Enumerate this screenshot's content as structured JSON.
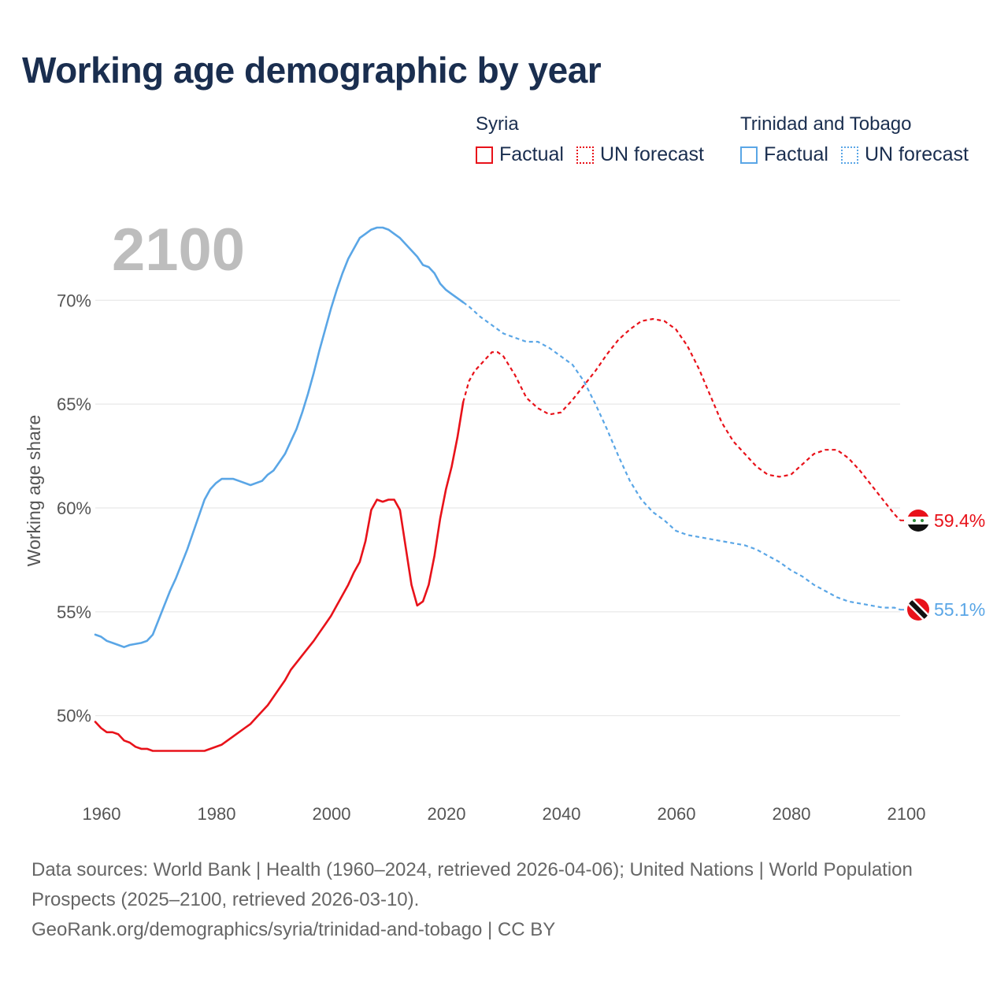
{
  "title": "Working age demographic by year",
  "legend": {
    "syria": {
      "country": "Syria",
      "factual": "Factual",
      "forecast": "UN forecast",
      "color": "#e8121a"
    },
    "tt": {
      "country": "Trinidad and Tobago",
      "factual": "Factual",
      "forecast": "UN forecast",
      "color": "#5aa6e6"
    }
  },
  "current_year": "2100",
  "chart_data": {
    "type": "line",
    "title": "Working age demographic by year",
    "xlabel": "",
    "ylabel": "Working age share",
    "xlim": [
      1960,
      2100
    ],
    "ylim": [
      46.5,
      73.5
    ],
    "x_ticks": [
      "1960",
      "1980",
      "2000",
      "2020",
      "2040",
      "2060",
      "2080",
      "2100"
    ],
    "y_ticks": [
      {
        "value": 50,
        "label": "50%"
      },
      {
        "value": 55,
        "label": "55%"
      },
      {
        "value": 60,
        "label": "60%"
      },
      {
        "value": 65,
        "label": "65%"
      },
      {
        "value": 70,
        "label": "70%"
      }
    ],
    "forecast_start": 2024,
    "series": [
      {
        "name": "Syria",
        "color": "#e8121a",
        "end_label": "59.4%",
        "points": [
          [
            1960,
            49.7
          ],
          [
            1961,
            49.4
          ],
          [
            1962,
            49.2
          ],
          [
            1963,
            49.2
          ],
          [
            1964,
            49.1
          ],
          [
            1965,
            48.8
          ],
          [
            1966,
            48.7
          ],
          [
            1967,
            48.5
          ],
          [
            1968,
            48.4
          ],
          [
            1969,
            48.4
          ],
          [
            1970,
            48.3
          ],
          [
            1972,
            48.3
          ],
          [
            1975,
            48.3
          ],
          [
            1979,
            48.3
          ],
          [
            1980,
            48.4
          ],
          [
            1982,
            48.6
          ],
          [
            1984,
            49.0
          ],
          [
            1986,
            49.4
          ],
          [
            1987,
            49.6
          ],
          [
            1988,
            49.9
          ],
          [
            1990,
            50.5
          ],
          [
            1992,
            51.3
          ],
          [
            1993,
            51.7
          ],
          [
            1994,
            52.2
          ],
          [
            1996,
            52.9
          ],
          [
            1998,
            53.6
          ],
          [
            1999,
            54.0
          ],
          [
            2000,
            54.4
          ],
          [
            2001,
            54.8
          ],
          [
            2002,
            55.3
          ],
          [
            2003,
            55.8
          ],
          [
            2004,
            56.3
          ],
          [
            2005,
            56.9
          ],
          [
            2006,
            57.4
          ],
          [
            2007,
            58.4
          ],
          [
            2008,
            59.9
          ],
          [
            2009,
            60.4
          ],
          [
            2010,
            60.3
          ],
          [
            2011,
            60.4
          ],
          [
            2012,
            60.4
          ],
          [
            2013,
            59.9
          ],
          [
            2014,
            58.1
          ],
          [
            2015,
            56.3
          ],
          [
            2016,
            55.3
          ],
          [
            2017,
            55.5
          ],
          [
            2018,
            56.3
          ],
          [
            2019,
            57.7
          ],
          [
            2020,
            59.5
          ],
          [
            2021,
            60.9
          ],
          [
            2022,
            62.0
          ],
          [
            2023,
            63.4
          ],
          [
            2024,
            65.1
          ],
          [
            2025,
            66.1
          ],
          [
            2026,
            66.6
          ],
          [
            2028,
            67.2
          ],
          [
            2029,
            67.5
          ],
          [
            2030,
            67.5
          ],
          [
            2031,
            67.3
          ],
          [
            2033,
            66.4
          ],
          [
            2035,
            65.3
          ],
          [
            2037,
            64.8
          ],
          [
            2039,
            64.5
          ],
          [
            2041,
            64.6
          ],
          [
            2043,
            65.2
          ],
          [
            2045,
            65.9
          ],
          [
            2047,
            66.6
          ],
          [
            2049,
            67.4
          ],
          [
            2051,
            68.1
          ],
          [
            2053,
            68.6
          ],
          [
            2055,
            69.0
          ],
          [
            2057,
            69.1
          ],
          [
            2059,
            69.0
          ],
          [
            2061,
            68.6
          ],
          [
            2063,
            67.8
          ],
          [
            2065,
            66.7
          ],
          [
            2067,
            65.4
          ],
          [
            2069,
            64.1
          ],
          [
            2071,
            63.2
          ],
          [
            2073,
            62.6
          ],
          [
            2075,
            62.0
          ],
          [
            2077,
            61.6
          ],
          [
            2079,
            61.5
          ],
          [
            2081,
            61.6
          ],
          [
            2083,
            62.1
          ],
          [
            2085,
            62.6
          ],
          [
            2087,
            62.8
          ],
          [
            2089,
            62.8
          ],
          [
            2091,
            62.4
          ],
          [
            2093,
            61.8
          ],
          [
            2095,
            61.1
          ],
          [
            2097,
            60.4
          ],
          [
            2099,
            59.7
          ],
          [
            2100,
            59.4
          ]
        ]
      },
      {
        "name": "Trinidad and Tobago",
        "color": "#5aa6e6",
        "end_label": "55.1%",
        "points": [
          [
            1960,
            53.9
          ],
          [
            1961,
            53.8
          ],
          [
            1962,
            53.6
          ],
          [
            1963,
            53.5
          ],
          [
            1964,
            53.4
          ],
          [
            1965,
            53.3
          ],
          [
            1966,
            53.4
          ],
          [
            1968,
            53.5
          ],
          [
            1969,
            53.6
          ],
          [
            1970,
            53.9
          ],
          [
            1971,
            54.6
          ],
          [
            1972,
            55.3
          ],
          [
            1973,
            56.0
          ],
          [
            1974,
            56.6
          ],
          [
            1975,
            57.3
          ],
          [
            1976,
            58.0
          ],
          [
            1977,
            58.8
          ],
          [
            1978,
            59.6
          ],
          [
            1979,
            60.4
          ],
          [
            1980,
            60.9
          ],
          [
            1981,
            61.2
          ],
          [
            1982,
            61.4
          ],
          [
            1983,
            61.4
          ],
          [
            1984,
            61.4
          ],
          [
            1985,
            61.3
          ],
          [
            1987,
            61.1
          ],
          [
            1989,
            61.3
          ],
          [
            1990,
            61.6
          ],
          [
            1991,
            61.8
          ],
          [
            1992,
            62.2
          ],
          [
            1993,
            62.6
          ],
          [
            1994,
            63.2
          ],
          [
            1995,
            63.8
          ],
          [
            1996,
            64.6
          ],
          [
            1997,
            65.5
          ],
          [
            1998,
            66.5
          ],
          [
            1999,
            67.6
          ],
          [
            2000,
            68.6
          ],
          [
            2001,
            69.6
          ],
          [
            2002,
            70.5
          ],
          [
            2003,
            71.3
          ],
          [
            2004,
            72.0
          ],
          [
            2005,
            72.5
          ],
          [
            2006,
            73.0
          ],
          [
            2007,
            73.2
          ],
          [
            2008,
            73.4
          ],
          [
            2009,
            73.5
          ],
          [
            2010,
            73.5
          ],
          [
            2011,
            73.4
          ],
          [
            2012,
            73.2
          ],
          [
            2013,
            73.0
          ],
          [
            2014,
            72.7
          ],
          [
            2015,
            72.4
          ],
          [
            2016,
            72.1
          ],
          [
            2017,
            71.7
          ],
          [
            2018,
            71.6
          ],
          [
            2019,
            71.3
          ],
          [
            2020,
            70.8
          ],
          [
            2021,
            70.5
          ],
          [
            2022,
            70.3
          ],
          [
            2024,
            69.9
          ],
          [
            2025,
            69.7
          ],
          [
            2027,
            69.2
          ],
          [
            2029,
            68.8
          ],
          [
            2031,
            68.4
          ],
          [
            2033,
            68.2
          ],
          [
            2035,
            68.0
          ],
          [
            2037,
            68.0
          ],
          [
            2039,
            67.7
          ],
          [
            2041,
            67.3
          ],
          [
            2043,
            66.9
          ],
          [
            2045,
            66.1
          ],
          [
            2047,
            65.0
          ],
          [
            2049,
            63.8
          ],
          [
            2051,
            62.5
          ],
          [
            2053,
            61.3
          ],
          [
            2055,
            60.4
          ],
          [
            2057,
            59.8
          ],
          [
            2059,
            59.4
          ],
          [
            2061,
            58.9
          ],
          [
            2063,
            58.7
          ],
          [
            2065,
            58.6
          ],
          [
            2067,
            58.5
          ],
          [
            2069,
            58.4
          ],
          [
            2071,
            58.3
          ],
          [
            2073,
            58.2
          ],
          [
            2075,
            58.0
          ],
          [
            2077,
            57.7
          ],
          [
            2079,
            57.4
          ],
          [
            2081,
            57.0
          ],
          [
            2083,
            56.7
          ],
          [
            2085,
            56.3
          ],
          [
            2087,
            56.0
          ],
          [
            2089,
            55.7
          ],
          [
            2091,
            55.5
          ],
          [
            2093,
            55.4
          ],
          [
            2095,
            55.3
          ],
          [
            2097,
            55.2
          ],
          [
            2099,
            55.2
          ],
          [
            2100,
            55.1
          ]
        ]
      }
    ]
  },
  "footer": {
    "line1": "Data sources: World Bank | Health (1960–2024, retrieved 2026-04-06); United Nations | World Population Prospects (2025–2100, retrieved 2026-03-10).",
    "line2": "GeoRank.org/demographics/syria/trinidad-and-tobago | CC BY"
  }
}
